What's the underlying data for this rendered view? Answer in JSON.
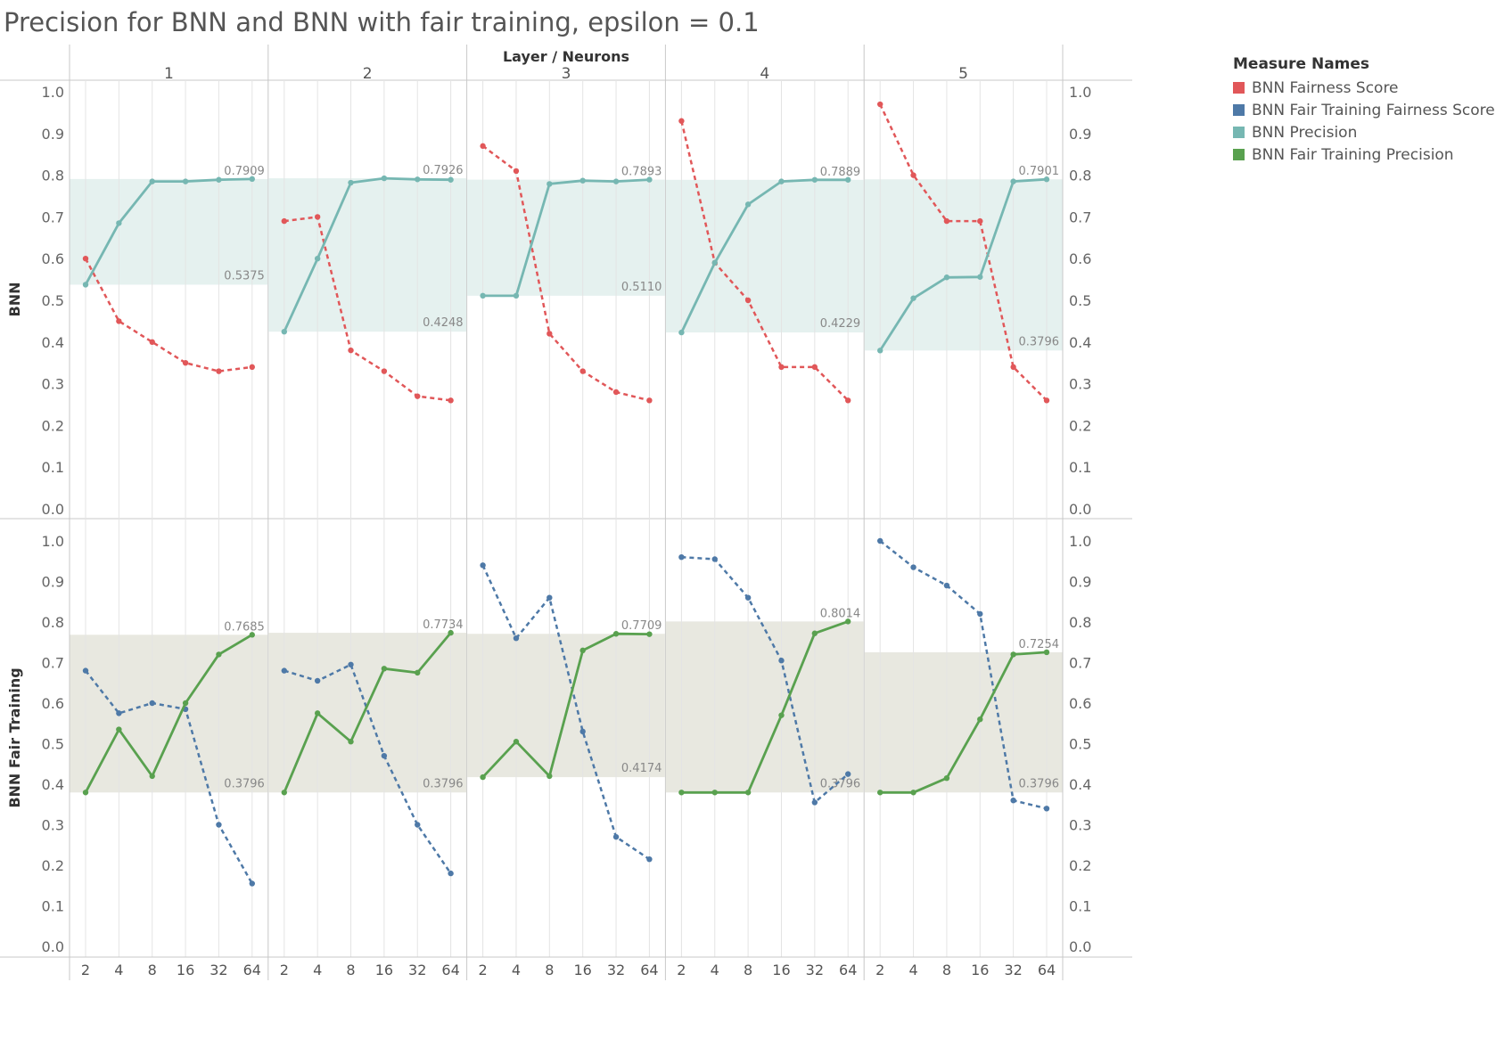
{
  "title": "Precision for BNN and BNN with fair training, epsilon = 0.1",
  "legend": {
    "title": "Measure Names",
    "items": [
      {
        "label": "BNN Fairness Score",
        "color": "#e15759"
      },
      {
        "label": "BNN Fair Training Fairness Score",
        "color": "#4e79a7"
      },
      {
        "label": "BNN Precision",
        "color": "#76b7b2"
      },
      {
        "label": "BNN Fair Training Precision",
        "color": "#59a14f"
      }
    ]
  },
  "chart_data": {
    "type": "line",
    "column_header": "Layer / Neurons",
    "layers": [
      "1",
      "2",
      "3",
      "4",
      "5"
    ],
    "x_ticks": [
      "2",
      "4",
      "8",
      "16",
      "32",
      "64"
    ],
    "rows": [
      {
        "label": "BNN",
        "ylim": [
          0,
          1
        ],
        "y_ticks": [
          "0.0",
          "0.1",
          "0.2",
          "0.3",
          "0.4",
          "0.5",
          "0.6",
          "0.7",
          "0.8",
          "0.9",
          "1.0"
        ],
        "band_color": "#e5f1ef",
        "panels": [
          {
            "band": [
              0.5375,
              0.7909
            ],
            "band_labels": [
              "0.5375",
              "0.7909"
            ],
            "series": [
              {
                "name": "BNN Fairness Score",
                "color": "#e15759",
                "dashed": true,
                "values": [
                  0.6,
                  0.45,
                  0.4,
                  0.35,
                  0.33,
                  0.34
                ]
              },
              {
                "name": "BNN Precision",
                "color": "#76b7b2",
                "dashed": false,
                "values": [
                  0.5375,
                  0.685,
                  0.785,
                  0.785,
                  0.789,
                  0.7909
                ]
              }
            ]
          },
          {
            "band": [
              0.4248,
              0.7926
            ],
            "band_labels": [
              "0.4248",
              "0.7926"
            ],
            "series": [
              {
                "name": "BNN Fairness Score",
                "color": "#e15759",
                "dashed": true,
                "values": [
                  0.69,
                  0.7,
                  0.38,
                  0.33,
                  0.27,
                  0.26
                ]
              },
              {
                "name": "BNN Precision",
                "color": "#76b7b2",
                "dashed": false,
                "values": [
                  0.4248,
                  0.6,
                  0.782,
                  0.7926,
                  0.79,
                  0.789
                ]
              }
            ]
          },
          {
            "band": [
              0.511,
              0.7893
            ],
            "band_labels": [
              "0.5110",
              "0.7893"
            ],
            "series": [
              {
                "name": "BNN Fairness Score",
                "color": "#e15759",
                "dashed": true,
                "values": [
                  0.87,
                  0.81,
                  0.42,
                  0.33,
                  0.28,
                  0.26
                ]
              },
              {
                "name": "BNN Precision",
                "color": "#76b7b2",
                "dashed": false,
                "values": [
                  0.511,
                  0.511,
                  0.779,
                  0.787,
                  0.785,
                  0.7893
                ]
              }
            ]
          },
          {
            "band": [
              0.4229,
              0.7889
            ],
            "band_labels": [
              "0.4229",
              "0.7889"
            ],
            "series": [
              {
                "name": "BNN Fairness Score",
                "color": "#e15759",
                "dashed": true,
                "values": [
                  0.93,
                  0.59,
                  0.5,
                  0.34,
                  0.34,
                  0.26
                ]
              },
              {
                "name": "BNN Precision",
                "color": "#76b7b2",
                "dashed": false,
                "values": [
                  0.4229,
                  0.59,
                  0.73,
                  0.785,
                  0.7889,
                  0.7889
                ]
              }
            ]
          },
          {
            "band": [
              0.3796,
              0.7901
            ],
            "band_labels": [
              "0.3796",
              "0.7901"
            ],
            "series": [
              {
                "name": "BNN Fairness Score",
                "color": "#e15759",
                "dashed": true,
                "values": [
                  0.97,
                  0.8,
                  0.69,
                  0.69,
                  0.34,
                  0.26
                ]
              },
              {
                "name": "BNN Precision",
                "color": "#76b7b2",
                "dashed": false,
                "values": [
                  0.3796,
                  0.505,
                  0.555,
                  0.556,
                  0.785,
                  0.7901
                ]
              }
            ]
          }
        ]
      },
      {
        "label": "BNN Fair Training",
        "ylim": [
          0,
          1
        ],
        "y_ticks": [
          "0.0",
          "0.1",
          "0.2",
          "0.3",
          "0.4",
          "0.5",
          "0.6",
          "0.7",
          "0.8",
          "0.9",
          "1.0"
        ],
        "band_color": "#e8e8e0",
        "panels": [
          {
            "band": [
              0.3796,
              0.7685
            ],
            "band_labels": [
              "0.3796",
              "0.7685"
            ],
            "series": [
              {
                "name": "BNN Fair Training Fairness Score",
                "color": "#4e79a7",
                "dashed": true,
                "values": [
                  0.68,
                  0.575,
                  0.6,
                  0.585,
                  0.3,
                  0.155
                ]
              },
              {
                "name": "BNN Fair Training Precision",
                "color": "#59a14f",
                "dashed": false,
                "values": [
                  0.3796,
                  0.535,
                  0.42,
                  0.6,
                  0.72,
                  0.7685
                ]
              }
            ]
          },
          {
            "band": [
              0.3796,
              0.7734
            ],
            "band_labels": [
              "0.3796",
              "0.7734"
            ],
            "series": [
              {
                "name": "BNN Fair Training Fairness Score",
                "color": "#4e79a7",
                "dashed": true,
                "values": [
                  0.68,
                  0.655,
                  0.695,
                  0.47,
                  0.3,
                  0.18
                ]
              },
              {
                "name": "BNN Fair Training Precision",
                "color": "#59a14f",
                "dashed": false,
                "values": [
                  0.3796,
                  0.575,
                  0.505,
                  0.685,
                  0.675,
                  0.7734
                ]
              }
            ]
          },
          {
            "band": [
              0.4174,
              0.7709
            ],
            "band_labels": [
              "0.4174",
              "0.7709"
            ],
            "series": [
              {
                "name": "BNN Fair Training Fairness Score",
                "color": "#4e79a7",
                "dashed": true,
                "values": [
                  0.94,
                  0.76,
                  0.86,
                  0.53,
                  0.27,
                  0.215
                ]
              },
              {
                "name": "BNN Fair Training Precision",
                "color": "#59a14f",
                "dashed": false,
                "values": [
                  0.4174,
                  0.505,
                  0.42,
                  0.73,
                  0.7709,
                  0.77
                ]
              }
            ]
          },
          {
            "band": [
              0.3796,
              0.8014
            ],
            "band_labels": [
              "0.3796",
              "0.8014"
            ],
            "series": [
              {
                "name": "BNN Fair Training Fairness Score",
                "color": "#4e79a7",
                "dashed": true,
                "values": [
                  0.96,
                  0.955,
                  0.86,
                  0.705,
                  0.355,
                  0.425
                ]
              },
              {
                "name": "BNN Fair Training Precision",
                "color": "#59a14f",
                "dashed": false,
                "values": [
                  0.3796,
                  0.3796,
                  0.3796,
                  0.57,
                  0.772,
                  0.8014
                ]
              }
            ]
          },
          {
            "band": [
              0.3796,
              0.7254
            ],
            "band_labels": [
              "0.3796",
              "0.7254"
            ],
            "series": [
              {
                "name": "BNN Fair Training Fairness Score",
                "color": "#4e79a7",
                "dashed": true,
                "values": [
                  1.0,
                  0.935,
                  0.89,
                  0.82,
                  0.36,
                  0.34
                ]
              },
              {
                "name": "BNN Fair Training Precision",
                "color": "#59a14f",
                "dashed": false,
                "values": [
                  0.3796,
                  0.3796,
                  0.415,
                  0.56,
                  0.72,
                  0.7254
                ]
              }
            ]
          }
        ]
      }
    ]
  }
}
